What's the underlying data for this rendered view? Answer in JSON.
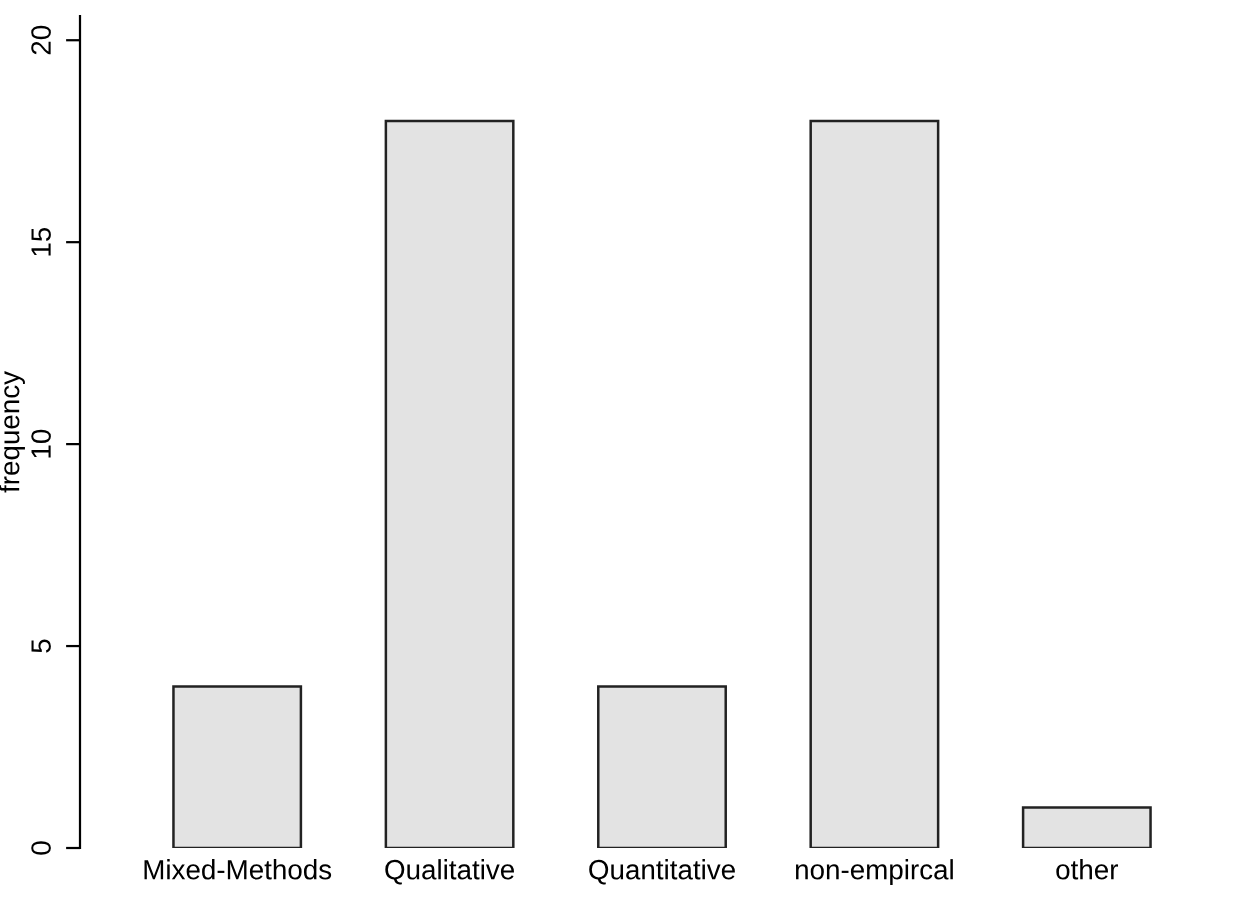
{
  "chart_data": {
    "type": "bar",
    "ylabel": "frequency",
    "categories": [
      "Mixed-Methods",
      "Qualitative",
      "Quantitative",
      "non-empircal",
      "other"
    ],
    "values": [
      4,
      18,
      4,
      18,
      1
    ],
    "color": "#e3e3e3",
    "ylim": [
      0,
      20.6
    ],
    "yticks": [
      0,
      5,
      10,
      15,
      20
    ],
    "grid": false
  }
}
